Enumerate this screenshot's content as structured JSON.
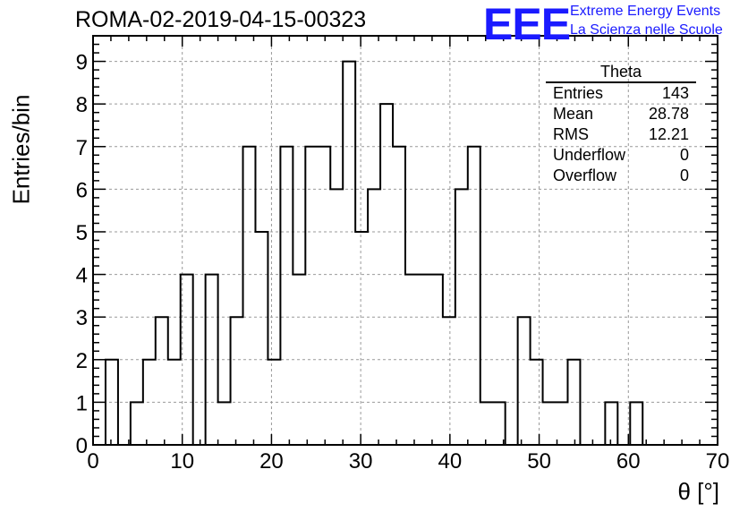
{
  "title": "ROMA-02-2019-04-15-00323",
  "logo": {
    "mark": "EEE",
    "line1": "Extreme Energy Events",
    "line2": "La Scienza nelle Scuole",
    "color": "#1a1aff"
  },
  "stats": {
    "name": "Theta",
    "rows": [
      {
        "label": "Entries",
        "value": "143"
      },
      {
        "label": "Mean",
        "value": "28.78"
      },
      {
        "label": "RMS",
        "value": "12.21"
      },
      {
        "label": "Underflow",
        "value": "0"
      },
      {
        "label": "Overflow",
        "value": "0"
      }
    ]
  },
  "chart_data": {
    "type": "bar",
    "style": "histogram-step",
    "xlabel": "θ [°]",
    "ylabel": "Entries/bin",
    "xlim": [
      0,
      70
    ],
    "ylim": [
      0,
      9.6
    ],
    "bin_width": 1.4,
    "bin_edges_start": 0,
    "x_ticks": [
      0,
      10,
      20,
      30,
      40,
      50,
      60,
      70
    ],
    "y_ticks": [
      0,
      1,
      2,
      3,
      4,
      5,
      6,
      7,
      8,
      9
    ],
    "grid": true,
    "values": [
      0,
      2,
      0,
      1,
      2,
      3,
      2,
      4,
      0,
      4,
      1,
      3,
      7,
      5,
      2,
      7,
      4,
      7,
      7,
      6,
      9,
      5,
      6,
      8,
      7,
      4,
      4,
      4,
      3,
      6,
      7,
      1,
      1,
      0,
      3,
      2,
      1,
      1,
      2,
      0,
      0,
      1,
      0,
      1,
      0,
      0,
      0,
      0,
      0,
      0
    ]
  }
}
